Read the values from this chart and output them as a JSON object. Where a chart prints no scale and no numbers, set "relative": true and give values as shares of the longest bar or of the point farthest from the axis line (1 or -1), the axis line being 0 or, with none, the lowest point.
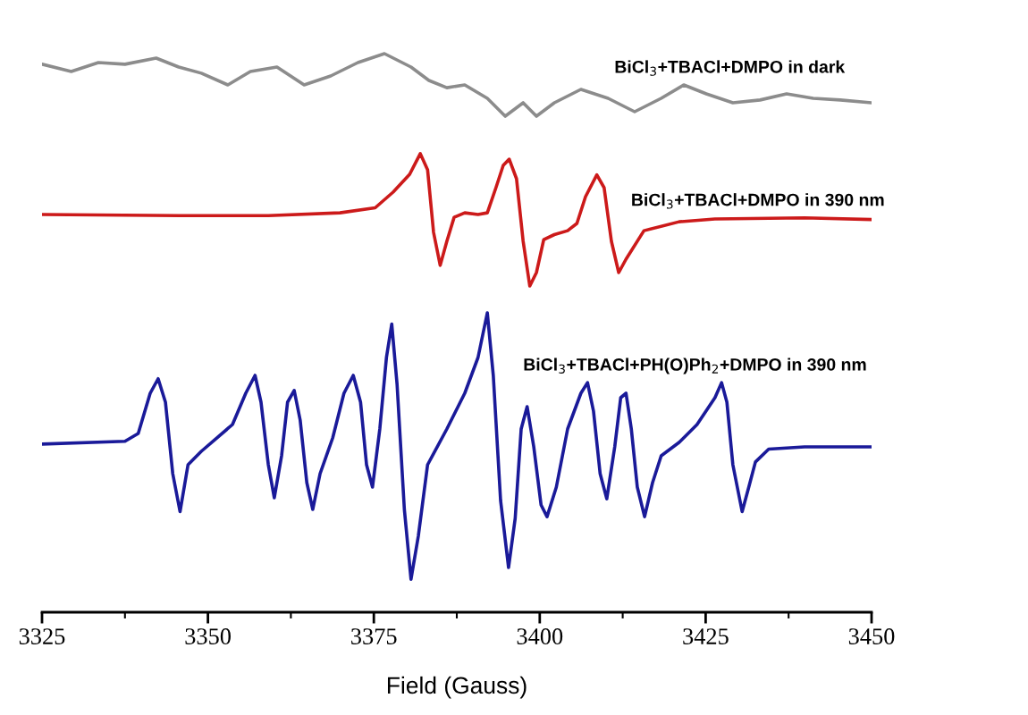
{
  "chart_data": {
    "type": "line",
    "relative": true,
    "xlabel": "Field (Gauss)",
    "xlim": [
      3325,
      3450
    ],
    "xticks": [
      3325,
      3350,
      3375,
      3400,
      3425,
      3450
    ],
    "grid": false,
    "legend": false,
    "marker": "none",
    "line_style": "solid",
    "tick_labels": "x",
    "series": [
      {
        "name": "BiCl$_{3}$+TBACl+DMPO in dark",
        "color": "#8c8c8c",
        "x": [
          3325,
          3329.4,
          3333.5,
          3337.5,
          3342.2,
          3345.6,
          3349.0,
          3353.0,
          3356.4,
          3360.4,
          3364.5,
          3368.5,
          3372.6,
          3376.6,
          3380.6,
          3383.3,
          3386.0,
          3388.7,
          3392.1,
          3394.8,
          3397.5,
          3399.5,
          3402.2,
          3406.2,
          3410.3,
          3414.3,
          3418.3,
          3421.7,
          3425.1,
          3429.1,
          3433.2,
          3437.2,
          3441.2,
          3445.3,
          3450
        ],
        "values": [
          0.981,
          0.968,
          0.984,
          0.981,
          0.992,
          0.976,
          0.965,
          0.944,
          0.968,
          0.976,
          0.944,
          0.96,
          0.984,
          1.0,
          0.976,
          0.952,
          0.939,
          0.944,
          0.92,
          0.888,
          0.912,
          0.888,
          0.912,
          0.936,
          0.92,
          0.896,
          0.92,
          0.944,
          0.928,
          0.912,
          0.917,
          0.928,
          0.92,
          0.917,
          0.912
        ]
      },
      {
        "name": "BiCl$_{3}$+TBACl+DMPO in 390 nm",
        "color": "#cc1a1a",
        "x": [
          3325,
          3345.6,
          3359.1,
          3369.9,
          3375.2,
          3377.9,
          3380.4,
          3382.0,
          3383.1,
          3384.0,
          3385.0,
          3386.0,
          3387.1,
          3388.7,
          3390.7,
          3392.1,
          3393.4,
          3394.5,
          3395.4,
          3396.5,
          3397.5,
          3398.5,
          3399.5,
          3400.6,
          3402.2,
          3404.2,
          3405.6,
          3406.9,
          3408.6,
          3409.7,
          3410.8,
          3411.9,
          3413.0,
          3415.7,
          3421.0,
          3426.4,
          3439.9,
          3450
        ],
        "values": [
          0.712,
          0.71,
          0.71,
          0.715,
          0.724,
          0.752,
          0.784,
          0.821,
          0.792,
          0.68,
          0.621,
          0.664,
          0.707,
          0.715,
          0.712,
          0.715,
          0.76,
          0.8,
          0.811,
          0.776,
          0.664,
          0.584,
          0.608,
          0.667,
          0.676,
          0.683,
          0.696,
          0.744,
          0.783,
          0.76,
          0.664,
          0.608,
          0.632,
          0.683,
          0.699,
          0.704,
          0.706,
          0.703
        ]
      },
      {
        "name": "BiCl$_{3}$+TBACl+PH(O)Ph$_{2}$+DMPO in 390 nm",
        "color": "#1a1a99",
        "x": [
          3325,
          3337.5,
          3339.5,
          3341.3,
          3342.5,
          3343.6,
          3344.7,
          3345.8,
          3347.0,
          3349.0,
          3353.7,
          3355.7,
          3357.1,
          3358.0,
          3359.1,
          3360.0,
          3361.1,
          3362.0,
          3363.0,
          3363.9,
          3364.9,
          3365.8,
          3366.9,
          3368.8,
          3370.5,
          3371.9,
          3373.0,
          3373.9,
          3374.8,
          3375.9,
          3376.9,
          3377.7,
          3378.5,
          3379.6,
          3380.6,
          3381.7,
          3383.1,
          3386.0,
          3388.7,
          3390.7,
          3392.1,
          3393.0,
          3394.1,
          3395.3,
          3396.3,
          3397.2,
          3398.1,
          3399.1,
          3400.2,
          3401.1,
          3402.5,
          3404.2,
          3406.2,
          3407.2,
          3408.1,
          3409.1,
          3410.1,
          3411.3,
          3412.2,
          3413.0,
          3413.8,
          3414.7,
          3415.8,
          3417.0,
          3418.3,
          3421.0,
          3423.7,
          3426.4,
          3427.4,
          3428.2,
          3429.1,
          3430.5,
          3431.5,
          3432.5,
          3434.5,
          3439.9,
          3450
        ],
        "values": [
          0.301,
          0.306,
          0.32,
          0.392,
          0.418,
          0.376,
          0.248,
          0.18,
          0.264,
          0.288,
          0.336,
          0.392,
          0.424,
          0.376,
          0.264,
          0.205,
          0.28,
          0.376,
          0.397,
          0.344,
          0.232,
          0.184,
          0.248,
          0.312,
          0.392,
          0.424,
          0.376,
          0.264,
          0.224,
          0.328,
          0.456,
          0.516,
          0.408,
          0.184,
          0.059,
          0.136,
          0.264,
          0.328,
          0.392,
          0.456,
          0.536,
          0.424,
          0.2,
          0.08,
          0.168,
          0.328,
          0.368,
          0.296,
          0.192,
          0.171,
          0.224,
          0.328,
          0.392,
          0.411,
          0.36,
          0.248,
          0.203,
          0.296,
          0.384,
          0.392,
          0.328,
          0.224,
          0.171,
          0.232,
          0.28,
          0.304,
          0.336,
          0.384,
          0.411,
          0.376,
          0.264,
          0.18,
          0.224,
          0.269,
          0.292,
          0.296,
          0.296
        ]
      }
    ]
  }
}
